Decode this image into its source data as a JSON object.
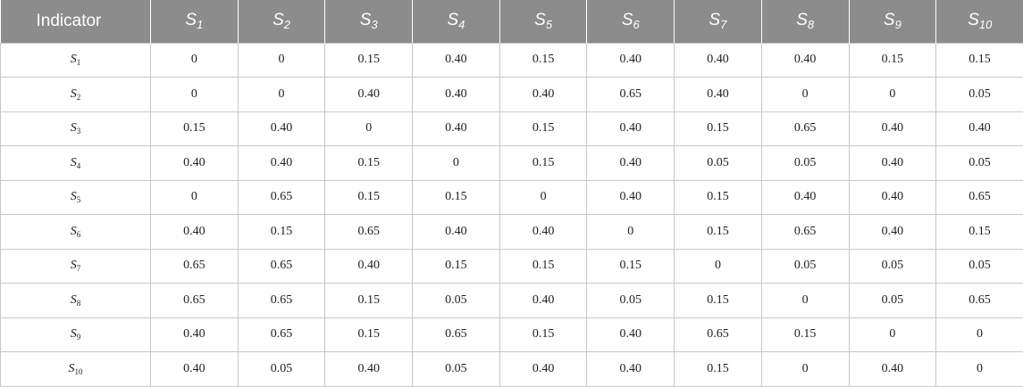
{
  "table": {
    "header_first": "Indicator",
    "var_symbol": "S",
    "columns": [
      "1",
      "2",
      "3",
      "4",
      "5",
      "6",
      "7",
      "8",
      "9",
      "10"
    ],
    "rows": [
      {
        "sub": "1",
        "cells": [
          "0",
          "0",
          "0.15",
          "0.40",
          "0.15",
          "0.40",
          "0.40",
          "0.40",
          "0.15",
          "0.15"
        ]
      },
      {
        "sub": "2",
        "cells": [
          "0",
          "0",
          "0.40",
          "0.40",
          "0.40",
          "0.65",
          "0.40",
          "0",
          "0",
          "0.05"
        ]
      },
      {
        "sub": "3",
        "cells": [
          "0.15",
          "0.40",
          "0",
          "0.40",
          "0.15",
          "0.40",
          "0.15",
          "0.65",
          "0.40",
          "0.40"
        ]
      },
      {
        "sub": "4",
        "cells": [
          "0.40",
          "0.40",
          "0.15",
          "0",
          "0.15",
          "0.40",
          "0.05",
          "0.05",
          "0.40",
          "0.05"
        ]
      },
      {
        "sub": "5",
        "cells": [
          "0",
          "0.65",
          "0.15",
          "0.15",
          "0",
          "0.40",
          "0.15",
          "0.40",
          "0.40",
          "0.65"
        ]
      },
      {
        "sub": "6",
        "cells": [
          "0.40",
          "0.15",
          "0.65",
          "0.40",
          "0.40",
          "0",
          "0.15",
          "0.65",
          "0.40",
          "0.15"
        ]
      },
      {
        "sub": "7",
        "cells": [
          "0.65",
          "0.65",
          "0.40",
          "0.15",
          "0.15",
          "0.15",
          "0",
          "0.05",
          "0.05",
          "0.05"
        ]
      },
      {
        "sub": "8",
        "cells": [
          "0.65",
          "0.65",
          "0.15",
          "0.05",
          "0.40",
          "0.05",
          "0.15",
          "0",
          "0.05",
          "0.65"
        ]
      },
      {
        "sub": "9",
        "cells": [
          "0.40",
          "0.65",
          "0.15",
          "0.65",
          "0.15",
          "0.40",
          "0.65",
          "0.15",
          "0",
          "0"
        ]
      },
      {
        "sub": "10",
        "cells": [
          "0.40",
          "0.05",
          "0.40",
          "0.05",
          "0.40",
          "0.40",
          "0.15",
          "0",
          "0.40",
          "0"
        ]
      }
    ]
  }
}
